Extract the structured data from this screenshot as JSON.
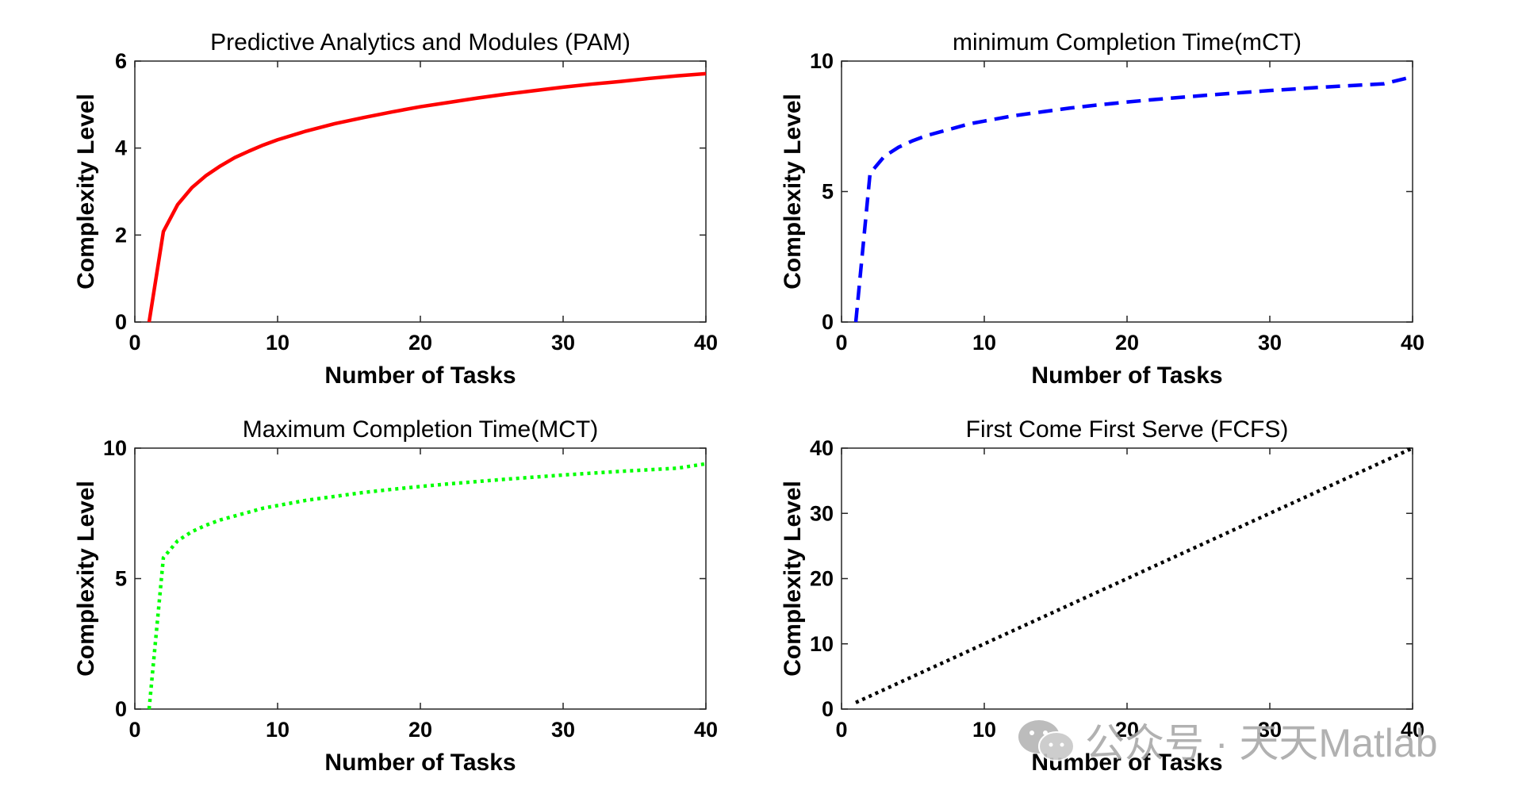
{
  "watermark": "公众号 · 天天Matlab",
  "chart_data": [
    {
      "type": "line",
      "title": "Predictive Analytics and Modules (PAM)",
      "xlabel": "Number of Tasks",
      "ylabel": "Complexity Level",
      "xlim": [
        0,
        40
      ],
      "ylim": [
        0,
        6
      ],
      "xticks": [
        0,
        10,
        20,
        30,
        40
      ],
      "yticks": [
        0,
        2,
        4,
        6
      ],
      "grid": false,
      "series": [
        {
          "color": "#ff0000",
          "style": "solid",
          "x": [
            1,
            2,
            3,
            4,
            5,
            6,
            7,
            8,
            9,
            10,
            12,
            14,
            16,
            18,
            20,
            22,
            24,
            26,
            28,
            30,
            32,
            34,
            36,
            38,
            40
          ],
          "y": [
            0,
            2.08,
            2.7,
            3.09,
            3.37,
            3.59,
            3.78,
            3.93,
            4.07,
            4.19,
            4.39,
            4.56,
            4.7,
            4.83,
            4.95,
            5.05,
            5.15,
            5.24,
            5.32,
            5.4,
            5.47,
            5.53,
            5.6,
            5.66,
            5.71
          ]
        }
      ]
    },
    {
      "type": "line",
      "title": "minimum Completion Time(mCT)",
      "xlabel": "Number of Tasks",
      "ylabel": "Complexity Level",
      "xlim": [
        0,
        40
      ],
      "ylim": [
        0,
        10
      ],
      "xticks": [
        0,
        10,
        20,
        30,
        40
      ],
      "yticks": [
        0,
        5,
        10
      ],
      "grid": false,
      "series": [
        {
          "color": "#0000ff",
          "style": "dashed",
          "x": [
            1,
            2,
            3,
            4,
            5,
            6,
            7,
            8,
            9,
            10,
            12,
            14,
            16,
            18,
            20,
            22,
            24,
            26,
            28,
            30,
            32,
            34,
            36,
            38,
            40
          ],
          "y": [
            0,
            5.7,
            6.35,
            6.7,
            6.95,
            7.15,
            7.3,
            7.45,
            7.6,
            7.7,
            7.9,
            8.05,
            8.2,
            8.32,
            8.43,
            8.53,
            8.62,
            8.71,
            8.79,
            8.87,
            8.94,
            9.01,
            9.07,
            9.13,
            9.4
          ]
        }
      ]
    },
    {
      "type": "line",
      "title": "Maximum Completion Time(MCT)",
      "xlabel": "Number of Tasks",
      "ylabel": "Complexity Level",
      "xlim": [
        0,
        40
      ],
      "ylim": [
        0,
        10
      ],
      "xticks": [
        0,
        10,
        20,
        30,
        40
      ],
      "yticks": [
        0,
        5,
        10
      ],
      "grid": false,
      "series": [
        {
          "color": "#00ff00",
          "style": "dotted",
          "x": [
            1,
            2,
            3,
            4,
            5,
            6,
            7,
            8,
            9,
            10,
            12,
            14,
            16,
            18,
            20,
            22,
            24,
            26,
            28,
            30,
            32,
            34,
            36,
            38,
            40
          ],
          "y": [
            0,
            5.8,
            6.45,
            6.8,
            7.05,
            7.25,
            7.4,
            7.55,
            7.7,
            7.8,
            8.0,
            8.15,
            8.3,
            8.42,
            8.53,
            8.63,
            8.72,
            8.81,
            8.89,
            8.97,
            9.04,
            9.11,
            9.17,
            9.23,
            9.4
          ]
        }
      ]
    },
    {
      "type": "line",
      "title": "First Come First Serve (FCFS)",
      "xlabel": "Number of Tasks",
      "ylabel": "Complexity Level",
      "xlim": [
        0,
        40
      ],
      "ylim": [
        0,
        40
      ],
      "xticks": [
        0,
        10,
        20,
        30,
        40
      ],
      "yticks": [
        0,
        10,
        20,
        30,
        40
      ],
      "grid": false,
      "series": [
        {
          "color": "#000000",
          "style": "dotted",
          "x": [
            1,
            40
          ],
          "y": [
            1,
            40
          ]
        }
      ]
    }
  ]
}
